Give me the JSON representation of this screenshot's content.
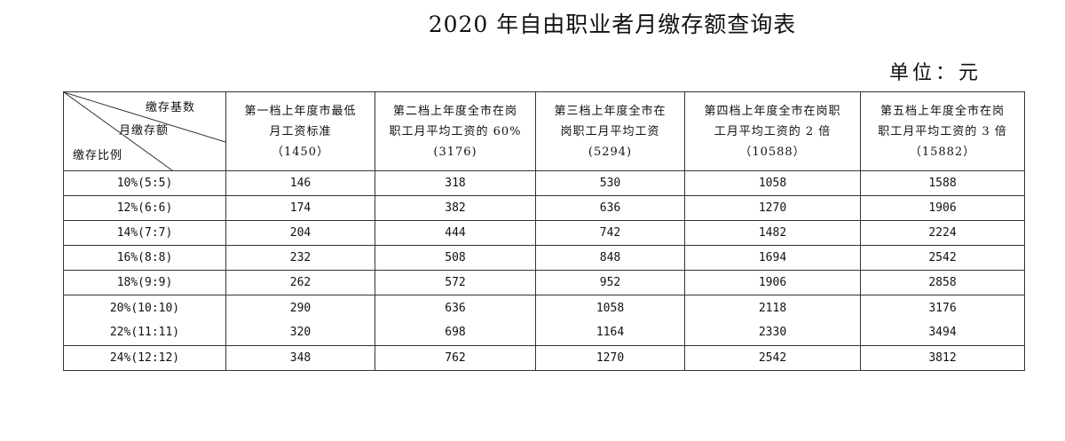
{
  "title": "2020 年自由职业者月缴存额查询表",
  "unit": "单位：元",
  "corner": {
    "top": "缴存基数",
    "middle": "月缴存额",
    "bottom": "缴存比例"
  },
  "columns": [
    {
      "line1": "第一档上年度市最低",
      "line2": "月工资标准",
      "base": "（1450）"
    },
    {
      "line1": "第二档上年度全市在岗",
      "line2": "职工月平均工资的 60%",
      "base": "(3176)"
    },
    {
      "line1": "第三档上年度全市在",
      "line2": "岗职工月平均工资",
      "base": "(5294)"
    },
    {
      "line1": "第四档上年度全市在岗职",
      "line2": "工月平均工资的 2 倍",
      "base": "（10588）"
    },
    {
      "line1": "第五档上年度全市在岗",
      "line2": "职工月平均工资的 3 倍",
      "base": "（15882）"
    }
  ],
  "rows": [
    {
      "ratio": "10%(5:5)",
      "values": [
        "146",
        "318",
        "530",
        "1058",
        "1588"
      ]
    },
    {
      "ratio": "12%(6:6)",
      "values": [
        "174",
        "382",
        "636",
        "1270",
        "1906"
      ]
    },
    {
      "ratio": "14%(7:7)",
      "values": [
        "204",
        "444",
        "742",
        "1482",
        "2224"
      ]
    },
    {
      "ratio": "16%(8:8)",
      "values": [
        "232",
        "508",
        "848",
        "1694",
        "2542"
      ]
    },
    {
      "ratio": "18%(9:9)",
      "values": [
        "262",
        "572",
        "952",
        "1906",
        "2858"
      ]
    },
    {
      "ratio": "20%(10:10)",
      "values": [
        "290",
        "636",
        "1058",
        "2118",
        "3176"
      ]
    },
    {
      "ratio": "22%(11:11)",
      "values": [
        "320",
        "698",
        "1164",
        "2330",
        "3494"
      ]
    },
    {
      "ratio": "24%(12:12)",
      "values": [
        "348",
        "762",
        "1270",
        "2542",
        "3812"
      ]
    }
  ]
}
